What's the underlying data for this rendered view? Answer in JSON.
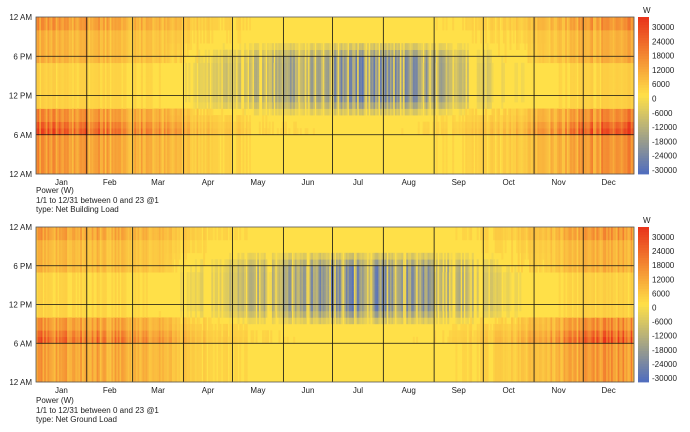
{
  "chart_data": [
    {
      "type": "heatmap",
      "x_axis": {
        "type": "date",
        "range": [
          "1/1",
          "12/31"
        ],
        "tick_labels": [
          "Jan",
          "Feb",
          "Mar",
          "Apr",
          "May",
          "Jun",
          "Jul",
          "Aug",
          "Sep",
          "Oct",
          "Nov",
          "Dec"
        ]
      },
      "y_axis": {
        "range": [
          0,
          24
        ],
        "tick_labels": [
          "12 AM",
          "6 AM",
          "12 PM",
          "6 PM",
          "12 AM"
        ]
      },
      "color_scale": {
        "unit": "W",
        "range": [
          -30000,
          30000
        ],
        "tick_labels": [
          "30000",
          "24000",
          "18000",
          "12000",
          "6000",
          "0",
          "-6000",
          "-12000",
          "-18000",
          "-24000",
          "-30000"
        ],
        "colors": [
          "#e8321b",
          "#ffe048",
          "#4f6cbf"
        ]
      },
      "caption": [
        "Power (W)",
        "1/1 to 12/31 between 0 and 23 @1",
        "type: Net Building Load"
      ],
      "monthly_peak_heating_W": [
        24000,
        20000,
        14000,
        6000,
        3000,
        1500,
        1000,
        1500,
        3500,
        7000,
        16000,
        26000
      ],
      "monthly_peak_cooling_W": [
        0,
        0,
        0,
        -6000,
        -12000,
        -18000,
        -22000,
        -20000,
        -12000,
        -3000,
        0,
        0
      ]
    },
    {
      "type": "heatmap",
      "x_axis": {
        "type": "date",
        "range": [
          "1/1",
          "12/31"
        ],
        "tick_labels": [
          "Jan",
          "Feb",
          "Mar",
          "Apr",
          "May",
          "Jun",
          "Jul",
          "Aug",
          "Sep",
          "Oct",
          "Nov",
          "Dec"
        ]
      },
      "y_axis": {
        "range": [
          0,
          24
        ],
        "tick_labels": [
          "12 AM",
          "6 AM",
          "12 PM",
          "6 PM",
          "12 AM"
        ]
      },
      "color_scale": {
        "unit": "W",
        "range": [
          -30000,
          30000
        ],
        "tick_labels": [
          "30000",
          "24000",
          "18000",
          "12000",
          "6000",
          "0",
          "-6000",
          "-12000",
          "-18000",
          "-24000",
          "-30000"
        ],
        "colors": [
          "#e8321b",
          "#ffe048",
          "#4f6cbf"
        ]
      },
      "caption": [
        "Power (W)",
        "1/1 to 12/31 between 0 and 23 @1",
        "type: Net Ground Load"
      ],
      "monthly_peak_heating_W": [
        22000,
        18000,
        12000,
        5000,
        2500,
        1200,
        800,
        1200,
        3000,
        6000,
        14000,
        24000
      ],
      "monthly_peak_cooling_W": [
        0,
        0,
        0,
        -6500,
        -13000,
        -19000,
        -23000,
        -21000,
        -13000,
        -3500,
        0,
        0
      ]
    }
  ]
}
